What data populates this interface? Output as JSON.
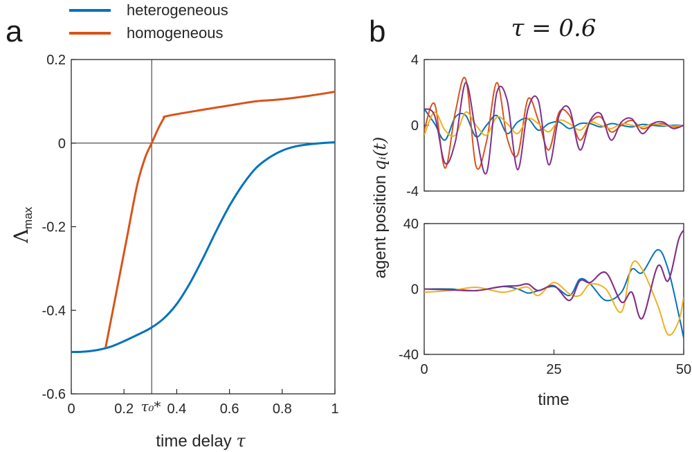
{
  "panel_a": {
    "label": "a",
    "tau_marker_label": "τ₀*"
  },
  "panel_b": {
    "label": "b",
    "title": "τ = 0.6",
    "ylabel_text": "agent position ",
    "ylabel_math": "qᵢ(t)"
  },
  "colors": {
    "blue": "#0072BD",
    "orange": "#D95319",
    "yellow": "#EDB120",
    "purple": "#7E2F8E"
  },
  "chart_data": [
    {
      "type": "line",
      "panel": "a",
      "xlabel": "time delay τ",
      "ylabel": "Λmax",
      "xlim": [
        0,
        1
      ],
      "ylim": [
        -0.6,
        0.2
      ],
      "xticks": [
        "0",
        "0.2",
        "0.4",
        "0.6",
        "0.8",
        "1"
      ],
      "yticks": [
        "-0.6",
        "-0.4",
        "-0.2",
        "0",
        "0.2"
      ],
      "reference_lines": {
        "x": 0.305,
        "y": 0
      },
      "legend_position": "top",
      "series": [
        {
          "name": "heterogeneous",
          "color": "#0072BD",
          "x": [
            0,
            0.05,
            0.1,
            0.15,
            0.2,
            0.25,
            0.3,
            0.35,
            0.4,
            0.45,
            0.5,
            0.55,
            0.6,
            0.65,
            0.7,
            0.75,
            0.8,
            0.85,
            0.9,
            0.95,
            1.0
          ],
          "y": [
            -0.5,
            -0.499,
            -0.495,
            -0.487,
            -0.474,
            -0.459,
            -0.443,
            -0.42,
            -0.385,
            -0.335,
            -0.275,
            -0.21,
            -0.15,
            -0.1,
            -0.06,
            -0.035,
            -0.018,
            -0.008,
            -0.003,
            0.0,
            0.002
          ]
        },
        {
          "name": "homogeneous",
          "color": "#D95319",
          "x": [
            0.13,
            0.17,
            0.21,
            0.25,
            0.28,
            0.305,
            0.33,
            0.35,
            0.365,
            0.5,
            0.6,
            0.7,
            0.8,
            0.9,
            1.0
          ],
          "y": [
            -0.49,
            -0.36,
            -0.23,
            -0.1,
            -0.035,
            0.0,
            0.035,
            0.058,
            0.065,
            0.08,
            0.09,
            0.1,
            0.105,
            0.113,
            0.123
          ]
        }
      ]
    },
    {
      "type": "line",
      "panel": "b-top",
      "xlim": [
        0,
        50
      ],
      "ylim": [
        -4,
        4
      ],
      "yticks": [
        "-4",
        "0",
        "4"
      ],
      "series": [
        {
          "color": "#0072BD",
          "x": [
            0,
            2,
            4,
            6,
            8,
            10,
            12,
            14,
            16,
            18,
            20,
            22,
            24,
            26,
            28,
            30,
            32,
            34,
            36,
            38,
            40,
            42,
            44,
            46,
            48,
            50
          ],
          "y": [
            1.0,
            0.1,
            -0.9,
            0.5,
            0.6,
            -0.7,
            0.0,
            0.6,
            -0.5,
            0.2,
            0.4,
            -0.3,
            0.1,
            0.2,
            -0.2,
            0.1,
            0.1,
            -0.1,
            0.1,
            0.0,
            -0.1,
            0.05,
            0.0,
            -0.05,
            0.0,
            0.0
          ]
        },
        {
          "color": "#D95319",
          "x": [
            0,
            2,
            4,
            6,
            8,
            10,
            12,
            14,
            16,
            18,
            20,
            22,
            24,
            26,
            28,
            30,
            32,
            34,
            36,
            38,
            40,
            42,
            44,
            46,
            48,
            50
          ],
          "y": [
            -0.3,
            1.3,
            -2.6,
            0.8,
            2.8,
            -2.5,
            -1.0,
            2.6,
            -0.8,
            -1.8,
            1.6,
            0.3,
            -1.5,
            0.8,
            0.6,
            -0.9,
            0.2,
            0.5,
            -0.4,
            0.0,
            0.3,
            -0.2,
            0.0,
            0.1,
            -0.1,
            0.0
          ]
        },
        {
          "color": "#EDB120",
          "x": [
            0,
            2,
            4,
            6,
            8,
            10,
            12,
            14,
            16,
            18,
            20,
            22,
            24,
            26,
            28,
            30,
            32,
            34,
            36,
            38,
            40,
            42,
            44,
            46,
            48,
            50
          ],
          "y": [
            -0.6,
            0.8,
            -0.3,
            -0.6,
            0.8,
            0.0,
            -0.6,
            0.5,
            0.1,
            -0.5,
            0.4,
            0.1,
            -0.4,
            0.3,
            0.1,
            -0.3,
            0.2,
            0.0,
            -0.2,
            0.1,
            0.0,
            -0.1,
            0.1,
            0.0,
            -0.05,
            0.0
          ]
        },
        {
          "color": "#7E2F8E",
          "x": [
            0,
            2,
            4,
            6,
            8,
            10,
            12,
            14,
            16,
            18,
            20,
            22,
            24,
            26,
            28,
            30,
            32,
            34,
            36,
            38,
            40,
            42,
            44,
            46,
            48,
            50
          ],
          "y": [
            1.0,
            0.6,
            -2.3,
            -1.0,
            2.6,
            -0.5,
            -2.9,
            2.0,
            1.5,
            -2.7,
            1.0,
            1.5,
            -2.4,
            0.6,
            1.0,
            -1.5,
            0.3,
            0.7,
            -0.9,
            0.2,
            0.4,
            -0.5,
            0.1,
            0.2,
            -0.2,
            0.0
          ]
        }
      ]
    },
    {
      "type": "line",
      "panel": "b-bottom",
      "xlabel": "time",
      "xlim": [
        0,
        50
      ],
      "ylim": [
        -40,
        40
      ],
      "xticks": [
        "0",
        "25",
        "50"
      ],
      "yticks": [
        "-40",
        "0",
        "40"
      ],
      "series": [
        {
          "color": "#0072BD",
          "x": [
            0,
            5,
            10,
            15,
            18,
            20,
            22,
            25,
            28,
            30,
            32,
            35,
            38,
            40,
            42,
            45,
            47,
            49,
            50
          ],
          "y": [
            0,
            0,
            -1,
            1.5,
            0,
            -2.5,
            -1,
            1.5,
            -4,
            6,
            3,
            -7,
            -2,
            12,
            10,
            24,
            12,
            -15,
            -30
          ]
        },
        {
          "color": "#D95319",
          "x": [
            0,
            5,
            10,
            15,
            18,
            20,
            22,
            25,
            28,
            30,
            32,
            35,
            38,
            40,
            42,
            45,
            47,
            49,
            50
          ],
          "y": [
            0,
            -0.5,
            -1,
            1.5,
            2,
            3,
            -1,
            2,
            -7,
            5,
            4,
            10,
            -8,
            -2,
            -18,
            14,
            5,
            30,
            36
          ]
        },
        {
          "color": "#EDB120",
          "x": [
            0,
            5,
            10,
            15,
            18,
            20,
            22,
            25,
            28,
            30,
            32,
            35,
            38,
            40,
            42,
            45,
            47,
            49,
            50
          ],
          "y": [
            -2,
            -1,
            1,
            -2,
            0,
            1,
            -4,
            4,
            -3,
            -4,
            3,
            0,
            -14,
            15,
            12,
            -10,
            -28,
            -20,
            -5
          ]
        },
        {
          "color": "#7E2F8E",
          "x": [
            0,
            5,
            10,
            15,
            18,
            20,
            22,
            25,
            28,
            30,
            32,
            35,
            38,
            40,
            42,
            45,
            47,
            49,
            50
          ],
          "y": [
            0,
            -0.5,
            -1,
            1.5,
            2,
            3,
            -1,
            2,
            -7,
            5,
            4,
            10,
            -8,
            -2,
            -18,
            14,
            5,
            30,
            36
          ]
        }
      ]
    }
  ]
}
